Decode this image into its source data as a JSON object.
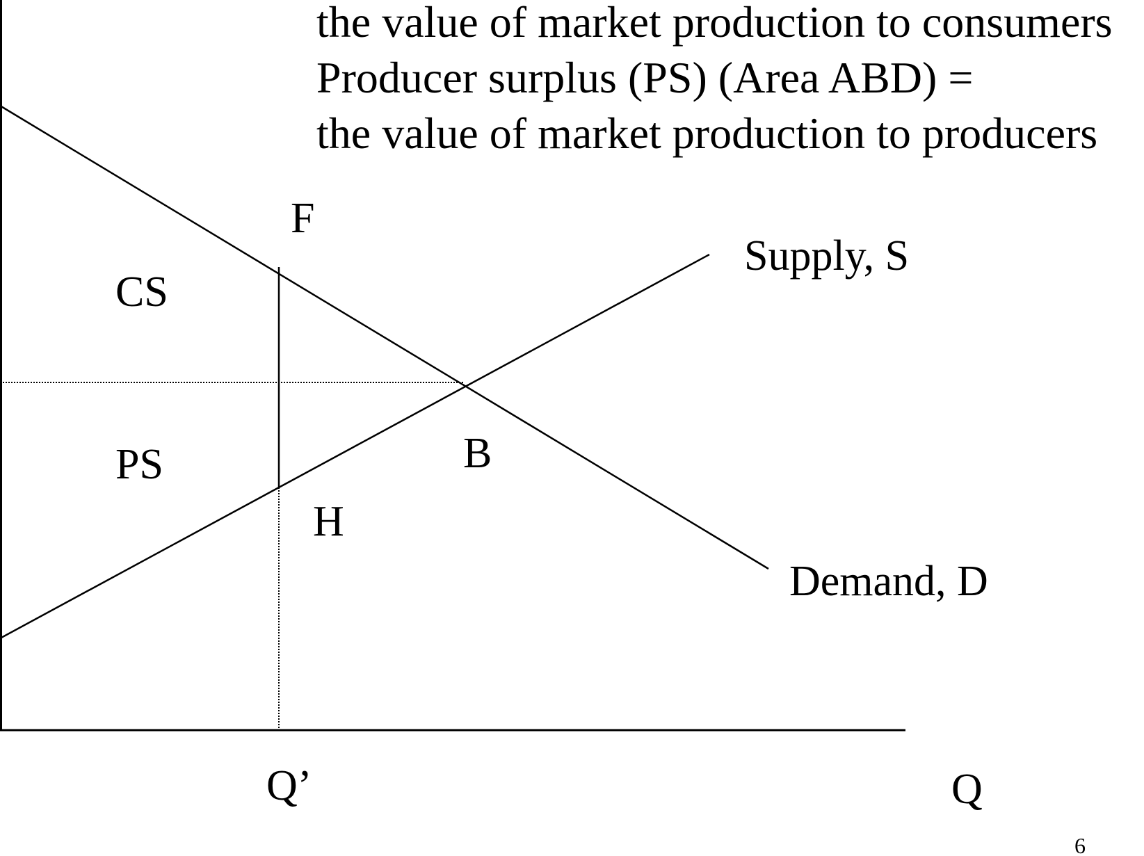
{
  "header": {
    "lines": [
      "the value of market production to consumers",
      "Producer surplus (PS) (Area ABD) =",
      "the value of market production to producers"
    ]
  },
  "diagram": {
    "supply_label": "Supply, S",
    "demand_label": "Demand, D",
    "area_cs_label": "CS",
    "area_ps_label": "PS",
    "point_f_label": "F",
    "point_b_label": "B",
    "point_h_label": "H",
    "x_tick_qprime": "Q’",
    "x_axis_label": "Q"
  },
  "footer": {
    "page_number": "6"
  },
  "colors": {
    "ink": "#000000",
    "background": "#ffffff"
  }
}
